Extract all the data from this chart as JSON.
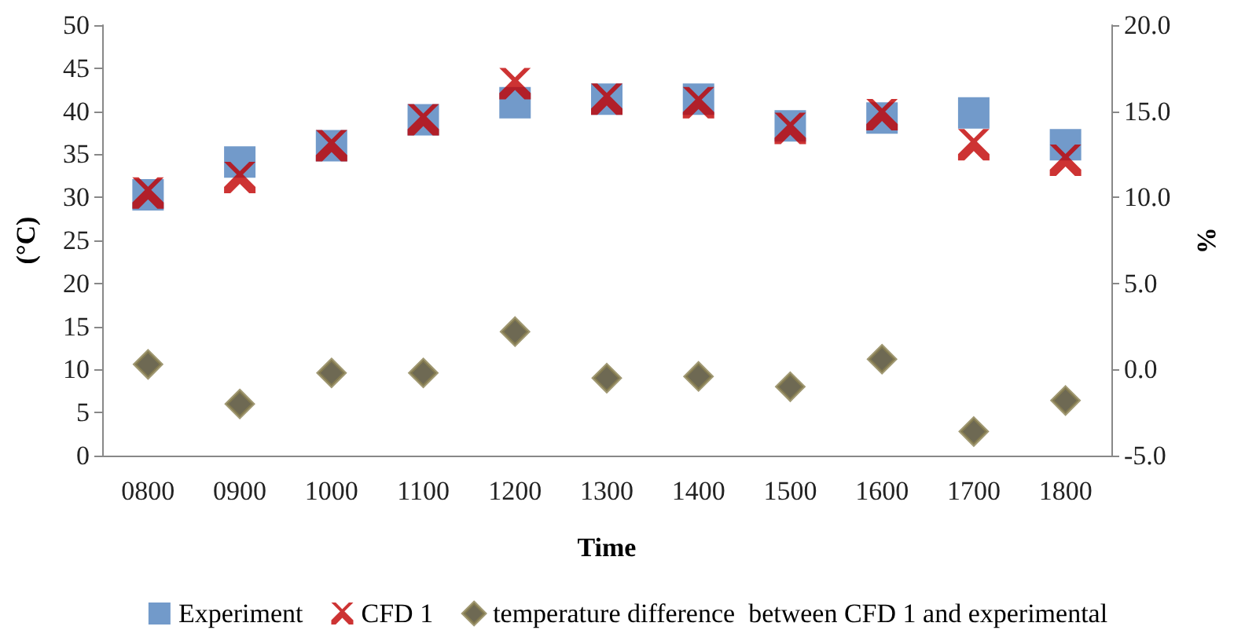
{
  "chart_data": {
    "type": "scatter",
    "xlabel": "Time",
    "ylabel": "(°C)",
    "y2label": "%",
    "categories": [
      "0800",
      "0900",
      "1000",
      "1100",
      "1200",
      "1300",
      "1400",
      "1500",
      "1600",
      "1700",
      "1800"
    ],
    "series": [
      {
        "name": "Experiment",
        "color": "#4f81bd",
        "marker": "square",
        "values": [
          30.3,
          34.1,
          36.0,
          39.0,
          41.0,
          41.4,
          41.4,
          38.3,
          39.2,
          39.8,
          36.1
        ]
      },
      {
        "name": "CFD 1",
        "color": "#c00000",
        "marker": "cross",
        "values": [
          30.5,
          32.3,
          36.0,
          39.0,
          43.2,
          41.4,
          41.0,
          38.0,
          39.6,
          36.1,
          34.3
        ]
      },
      {
        "name": "temperature difference  between CFD 1 and experimental",
        "color": "#4a4428",
        "marker": "diamond",
        "axis": "y2",
        "values": [
          0.3,
          -2.0,
          -0.2,
          -0.2,
          2.2,
          -0.5,
          -0.4,
          -1.0,
          0.6,
          -3.6,
          -1.8
        ]
      }
    ],
    "ylim": [
      0,
      50
    ],
    "yticks": [
      0,
      5,
      10,
      15,
      20,
      25,
      30,
      35,
      40,
      45,
      50
    ],
    "y2lim": [
      -5,
      20
    ],
    "y2ticks": [
      {
        "value": -5,
        "label": "-5.0"
      },
      {
        "value": 0,
        "label": "0.0"
      },
      {
        "value": 5,
        "label": "5.0"
      },
      {
        "value": 10,
        "label": "10.0"
      },
      {
        "value": 15,
        "label": "15.0"
      },
      {
        "value": 20,
        "label": "20.0"
      }
    ],
    "grid": false,
    "legend": "bottom"
  }
}
